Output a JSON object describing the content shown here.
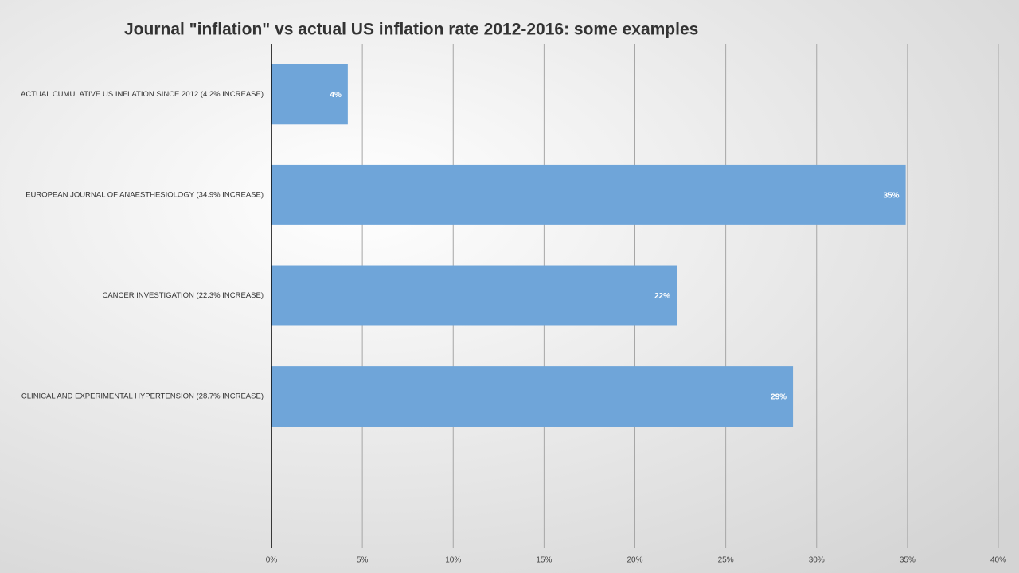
{
  "chart_data": {
    "type": "bar",
    "orientation": "horizontal",
    "title": "Journal \"inflation\" vs actual US inflation rate 2012-2016:  some examples",
    "categories": [
      "ACTUAL CUMULATIVE US INFLATION SINCE 2012 (4.2% INCREASE)",
      "EUROPEAN JOURNAL OF ANAESTHESIOLOGY (34.9% INCREASE)",
      "CANCER  INVESTIGATION (22.3% INCREASE)",
      "CLINICAL AND EXPERIMENTAL HYPERTENSION (28.7% INCREASE)",
      null
    ],
    "values": [
      4.2,
      34.9,
      22.3,
      28.7,
      null
    ],
    "value_labels": [
      "4%",
      "35%",
      "22%",
      "29%",
      null
    ],
    "color": "#6fa5d9",
    "xlim": [
      0,
      40
    ],
    "xticks": [
      {
        "value": 0,
        "label": "0%"
      },
      {
        "value": 5,
        "label": "5%"
      },
      {
        "value": 10,
        "label": "10%"
      },
      {
        "value": 15,
        "label": "15%"
      },
      {
        "value": 20,
        "label": "20%"
      },
      {
        "value": 25,
        "label": "25%"
      },
      {
        "value": 30,
        "label": "30%"
      },
      {
        "value": 35,
        "label": "35%"
      },
      {
        "value": 40,
        "label": "40%"
      }
    ],
    "grid": true
  }
}
